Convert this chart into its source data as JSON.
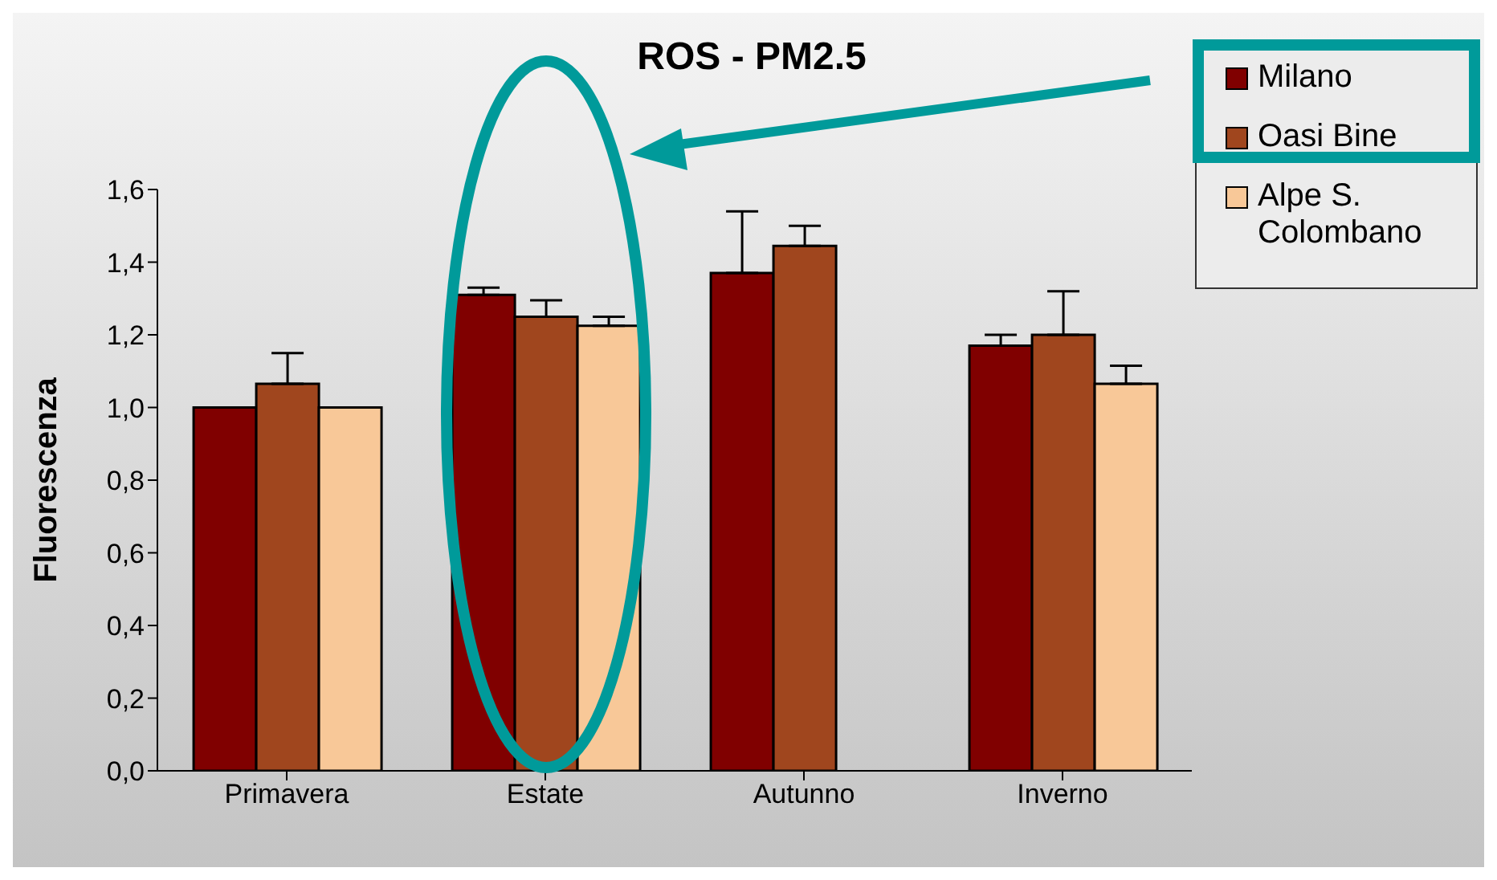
{
  "chart_data": {
    "type": "bar",
    "title": "ROS - PM2.5",
    "ylabel": "Fluorescenza",
    "categories": [
      "Primavera",
      "Estate",
      "Autunno",
      "Inverno"
    ],
    "series": [
      {
        "name": "Milano",
        "color": "#800000",
        "values": [
          1.0,
          1.31,
          1.37,
          1.17
        ],
        "errors": [
          null,
          [
            1.31,
            1.33
          ],
          [
            1.37,
            1.54
          ],
          [
            1.17,
            1.2
          ]
        ]
      },
      {
        "name": "Oasi Bine",
        "color": "#a0461e",
        "values": [
          1.065,
          1.25,
          1.445,
          1.2
        ],
        "errors": [
          [
            1.065,
            1.15
          ],
          [
            1.25,
            1.295
          ],
          [
            1.445,
            1.5
          ],
          [
            1.2,
            1.32
          ]
        ]
      },
      {
        "name": "Alpe S. Colombano",
        "color": "#f8c898",
        "values": [
          1.0,
          1.225,
          null,
          1.065
        ],
        "errors": [
          null,
          [
            1.225,
            1.25
          ],
          null,
          [
            1.065,
            1.115
          ]
        ]
      }
    ],
    "ylim": [
      0,
      1.6
    ],
    "yticks": [
      {
        "value": 0,
        "label": "0,0"
      },
      {
        "value": 0.2,
        "label": "0,2"
      },
      {
        "value": 0.4,
        "label": "0,4"
      },
      {
        "value": 0.6,
        "label": "0,6"
      },
      {
        "value": 0.8,
        "label": "0,8"
      },
      {
        "value": 1.0,
        "label": "1,0"
      },
      {
        "value": 1.2,
        "label": "1,2"
      },
      {
        "value": 1.4,
        "label": "1,4"
      },
      {
        "value": 1.6,
        "label": "1,6"
      }
    ],
    "grid": false,
    "legend": "top right"
  }
}
